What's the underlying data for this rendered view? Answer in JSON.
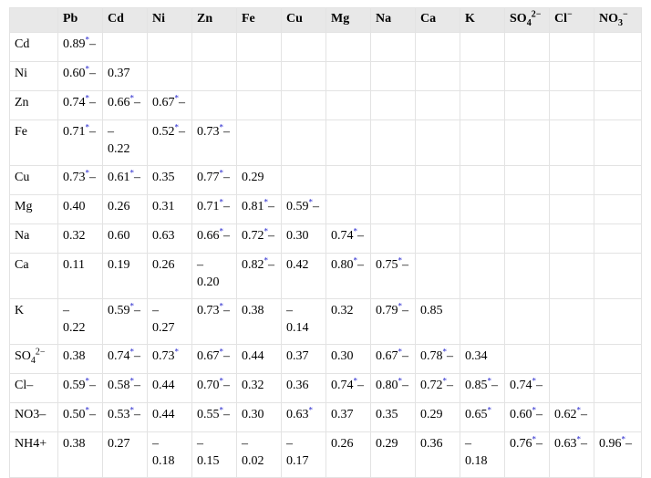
{
  "columns": [
    "",
    "Pb",
    "Cd",
    "Ni",
    "Zn",
    "Fe",
    "Cu",
    "Mg",
    "Na",
    "Ca",
    "K",
    "SO42−",
    "Cl−",
    "NO3−"
  ],
  "rows": [
    {
      "label": "Cd",
      "tall": false,
      "cells": [
        {
          "v": "0.89",
          "s": true,
          "u": true
        }
      ]
    },
    {
      "label": "Ni",
      "tall": false,
      "cells": [
        {
          "v": "0.60",
          "s": true,
          "u": true
        },
        {
          "v": "0.37"
        }
      ]
    },
    {
      "label": "Zn",
      "tall": false,
      "cells": [
        {
          "v": "0.74",
          "s": true,
          "u": true
        },
        {
          "v": "0.66",
          "s": true,
          "u": true
        },
        {
          "v": "0.67",
          "s": true,
          "u": true
        }
      ]
    },
    {
      "label": "Fe",
      "tall": true,
      "cells": [
        {
          "v": "0.71",
          "s": true,
          "u": true
        },
        {
          "v": "–\n0.22"
        },
        {
          "v": "0.52",
          "s": true,
          "u": true
        },
        {
          "v": "0.73",
          "s": true,
          "u": true
        }
      ]
    },
    {
      "label": "Cu",
      "tall": false,
      "cells": [
        {
          "v": "0.73",
          "s": true,
          "u": true
        },
        {
          "v": "0.61",
          "s": true,
          "u": true
        },
        {
          "v": "0.35"
        },
        {
          "v": "0.77",
          "s": true,
          "u": true
        },
        {
          "v": "0.29"
        }
      ]
    },
    {
      "label": "Mg",
      "tall": false,
      "cells": [
        {
          "v": "0.40"
        },
        {
          "v": "0.26"
        },
        {
          "v": "0.31"
        },
        {
          "v": "0.71",
          "s": true,
          "u": true
        },
        {
          "v": "0.81",
          "s": true,
          "u": true
        },
        {
          "v": "0.59",
          "s": true,
          "u": true
        }
      ]
    },
    {
      "label": "Na",
      "tall": false,
      "cells": [
        {
          "v": "0.32"
        },
        {
          "v": "0.60"
        },
        {
          "v": "0.63"
        },
        {
          "v": "0.66",
          "s": true,
          "u": true
        },
        {
          "v": "0.72",
          "s": true,
          "u": true
        },
        {
          "v": "0.30"
        },
        {
          "v": "0.74",
          "s": true,
          "u": true
        }
      ]
    },
    {
      "label": "Ca",
      "tall": true,
      "cells": [
        {
          "v": "0.11"
        },
        {
          "v": "0.19"
        },
        {
          "v": "0.26"
        },
        {
          "v": "–\n0.20"
        },
        {
          "v": "0.82",
          "s": true,
          "u": true
        },
        {
          "v": "0.42"
        },
        {
          "v": "0.80",
          "s": true,
          "u": true
        },
        {
          "v": "0.75",
          "s": true,
          "u": true
        }
      ]
    },
    {
      "label": "K",
      "tall": true,
      "cells": [
        {
          "v": "–\n0.22"
        },
        {
          "v": "0.59",
          "s": true,
          "u": true
        },
        {
          "v": "–\n0.27"
        },
        {
          "v": "0.73",
          "s": true,
          "u": true
        },
        {
          "v": "0.38"
        },
        {
          "v": "–\n0.14"
        },
        {
          "v": "0.32"
        },
        {
          "v": "0.79",
          "s": true,
          "u": true
        },
        {
          "v": "0.85"
        }
      ]
    },
    {
      "label": "SO42−",
      "tall": false,
      "cells": [
        {
          "v": "0.38"
        },
        {
          "v": "0.74",
          "s": true,
          "u": true
        },
        {
          "v": "0.73",
          "s": true,
          "u": false
        },
        {
          "v": "0.67",
          "s": true,
          "u": true
        },
        {
          "v": "0.44"
        },
        {
          "v": "0.37"
        },
        {
          "v": "0.30"
        },
        {
          "v": "0.67",
          "s": true,
          "u": true
        },
        {
          "v": "0.78",
          "s": true,
          "u": true
        },
        {
          "v": "0.34"
        }
      ]
    },
    {
      "label": "Cl–",
      "tall": false,
      "cells": [
        {
          "v": "0.59",
          "s": true,
          "u": true
        },
        {
          "v": "0.58",
          "s": true,
          "u": true
        },
        {
          "v": "0.44"
        },
        {
          "v": "0.70",
          "s": true,
          "u": true
        },
        {
          "v": "0.32"
        },
        {
          "v": "0.36"
        },
        {
          "v": "0.74",
          "s": true,
          "u": true
        },
        {
          "v": "0.80",
          "s": true,
          "u": true
        },
        {
          "v": "0.72",
          "s": true,
          "u": true
        },
        {
          "v": "0.85",
          "s": true,
          "u": true
        },
        {
          "v": "0.74",
          "s": true,
          "u": true
        }
      ]
    },
    {
      "label": "NO3–",
      "tall": false,
      "cells": [
        {
          "v": "0.50",
          "s": true,
          "u": true
        },
        {
          "v": "0.53",
          "s": true,
          "u": true
        },
        {
          "v": "0.44"
        },
        {
          "v": "0.55",
          "s": true,
          "u": true
        },
        {
          "v": "0.30"
        },
        {
          "v": "0.63",
          "s": true,
          "u": false
        },
        {
          "v": "0.37"
        },
        {
          "v": "0.35"
        },
        {
          "v": "0.29"
        },
        {
          "v": "0.65",
          "s": true,
          "u": false
        },
        {
          "v": "0.60",
          "s": true,
          "u": true
        },
        {
          "v": "0.62",
          "s": true,
          "u": true
        }
      ]
    },
    {
      "label": "NH4+",
      "tall": true,
      "cells": [
        {
          "v": "0.38"
        },
        {
          "v": "0.27"
        },
        {
          "v": "–\n0.18"
        },
        {
          "v": "–\n0.15"
        },
        {
          "v": "–\n0.02"
        },
        {
          "v": "–\n0.17"
        },
        {
          "v": "0.26"
        },
        {
          "v": "0.29"
        },
        {
          "v": "0.36"
        },
        {
          "v": "–\n0.18"
        },
        {
          "v": "0.76",
          "s": true,
          "u": true
        },
        {
          "v": "0.63",
          "s": true,
          "u": true
        },
        {
          "v": "0.96",
          "s": true,
          "u": true
        }
      ]
    }
  ],
  "marker": "*",
  "trail": "–",
  "colors": {
    "header_bg": "#e8e8e8",
    "asterisk": "#2222cc",
    "border": "#e3e3e3"
  }
}
